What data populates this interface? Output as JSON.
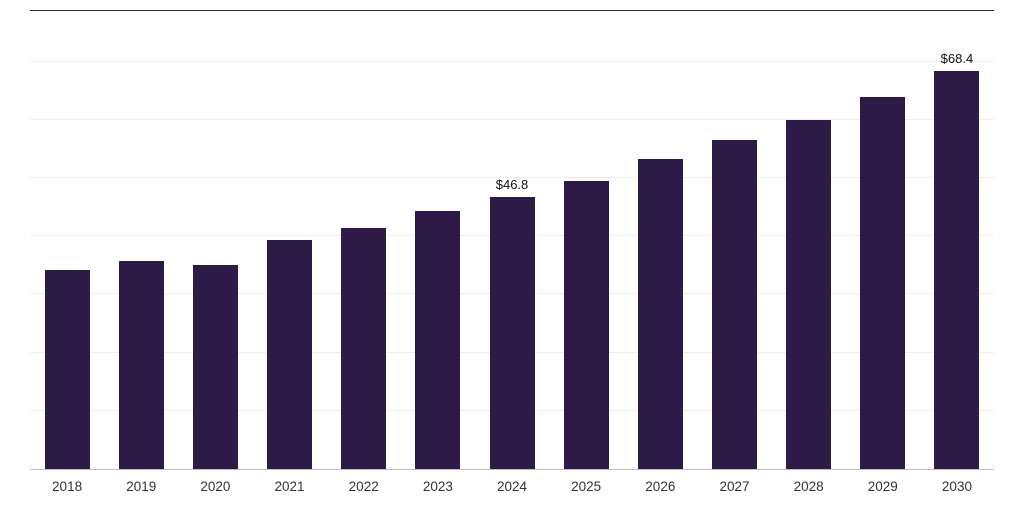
{
  "chart_data": {
    "type": "bar",
    "title": "",
    "xlabel": "",
    "ylabel": "",
    "categories": [
      "2018",
      "2019",
      "2020",
      "2021",
      "2022",
      "2023",
      "2024",
      "2025",
      "2026",
      "2027",
      "2028",
      "2029",
      "2030"
    ],
    "values": [
      34.2,
      35.7,
      35.1,
      39.3,
      41.5,
      44.3,
      46.8,
      49.5,
      53.2,
      56.5,
      60.0,
      64.0,
      68.4
    ],
    "value_labels": [
      "",
      "",
      "",
      "",
      "",
      "",
      "$46.8",
      "",
      "",
      "",
      "",
      "",
      "$68.4"
    ],
    "ylim": [
      0,
      78.7
    ],
    "gridline_interval": 10,
    "grid": "horizontal-faint-no-y-tick-labels",
    "legend_position": "none",
    "colors": {
      "bar": "#2e1a47",
      "gridline": "#ededed",
      "top_border": "#2b2b2b",
      "baseline": "#bdbdbd",
      "tick_label": "#333333",
      "value_label": "#111111",
      "background": "#ffffff"
    }
  }
}
